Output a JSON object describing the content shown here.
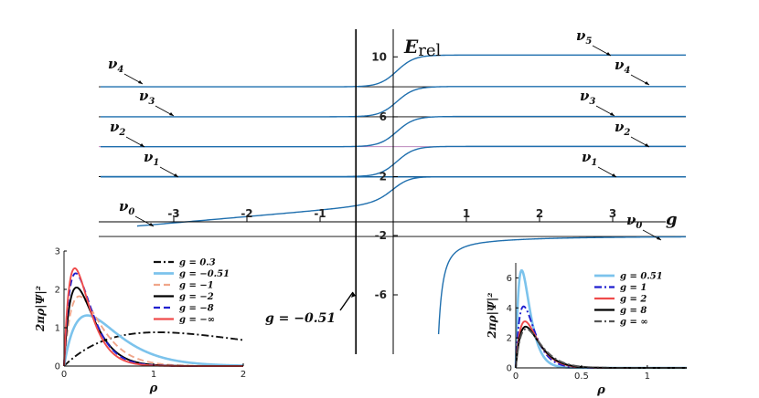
{
  "chart_data": [
    {
      "type": "line",
      "title": "",
      "ylabel_main": "E",
      "ylabel_sub": "rel",
      "xlabel": "g",
      "xlim": [
        -3.5,
        4.2
      ],
      "ylim": [
        -3.5,
        12
      ],
      "xticks": [
        -3,
        -2,
        -1,
        1,
        2,
        3
      ],
      "xtick_labels": [
        "-3",
        "-2",
        "-1",
        "1",
        "2",
        "3"
      ],
      "yticks": [
        -6,
        -2,
        2,
        6,
        10
      ],
      "ytick_labels": [
        "-6",
        "-2",
        "2",
        "6",
        "10"
      ],
      "thresholds": [
        -2,
        2,
        4,
        6,
        8
      ],
      "highlight_threshold": 4,
      "asymptotes_pos": [
        1.98,
        4.02,
        6.02,
        8.02,
        10.12
      ],
      "vertical_marker": {
        "g": -0.51,
        "label": "g = −0.51"
      },
      "level_labels": [
        {
          "base": "ν",
          "sub": "0",
          "side": "left",
          "g": -3.3,
          "E": -1.2
        },
        {
          "base": "ν",
          "sub": "1",
          "side": "left",
          "g": -3.0,
          "E": 2.0
        },
        {
          "base": "ν",
          "sub": "2",
          "side": "left",
          "g": -3.0,
          "E": 4.0
        },
        {
          "base": "ν",
          "sub": "3",
          "side": "left",
          "g": -2.8,
          "E": 6.0
        },
        {
          "base": "ν",
          "sub": "4",
          "side": "left",
          "g": -3.1,
          "E": 8.0
        },
        {
          "base": "ν",
          "sub": "0",
          "side": "right",
          "g": 3.9,
          "E": -2.6
        },
        {
          "base": "ν",
          "sub": "1",
          "side": "right",
          "g": 3.3,
          "E": 2.0
        },
        {
          "base": "ν",
          "sub": "2",
          "side": "right",
          "g": 3.6,
          "E": 4.0
        },
        {
          "base": "ν",
          "sub": "3",
          "side": "right",
          "g": 3.3,
          "E": 6.0
        },
        {
          "base": "ν",
          "sub": "4",
          "side": "right",
          "g": 3.6,
          "E": 8.0
        },
        {
          "base": "ν",
          "sub": "5",
          "side": "right",
          "g": 3.3,
          "E": 10.1
        }
      ]
    },
    {
      "type": "line",
      "title": "",
      "xlabel": "ρ",
      "ylabel": "2πρ|Ψ|²",
      "xlim": [
        0,
        2
      ],
      "ylim": [
        0,
        3
      ],
      "xtick_labels": [
        "0",
        "1",
        "2"
      ],
      "ytick_labels": [
        "0",
        "1",
        "2",
        "3"
      ],
      "legend_position": "top-right",
      "series": [
        {
          "name": "g = 0.3",
          "color": "#111111",
          "dash": "dashdot",
          "peak_rho": 1.05,
          "peak": 0.88
        },
        {
          "name": "g = −0.51",
          "color": "#7cc3ec",
          "dash": "solid",
          "peak_rho": 0.26,
          "peak": 1.32
        },
        {
          "name": "g = −1",
          "color": "#f0a68a",
          "dash": "dashed",
          "peak_rho": 0.17,
          "peak": 1.82
        },
        {
          "name": "g = −2",
          "color": "#000000",
          "dash": "solid",
          "peak_rho": 0.14,
          "peak": 2.05
        },
        {
          "name": "g = −8",
          "color": "#1f1fcf",
          "dash": "dashed",
          "peak_rho": 0.13,
          "peak": 2.42
        },
        {
          "name": "g = −∞",
          "color": "#ef4b4b",
          "dash": "solid",
          "peak_rho": 0.12,
          "peak": 2.55
        }
      ]
    },
    {
      "type": "line",
      "title": "",
      "xlabel": "ρ",
      "ylabel": "2πρ|Ψ|²",
      "xlim": [
        0,
        1.3
      ],
      "ylim": [
        0,
        7
      ],
      "xtick_labels": [
        "0",
        "0.5",
        "1"
      ],
      "ytick_labels": [
        "0",
        "2",
        "4",
        "6"
      ],
      "legend_position": "top-right",
      "series": [
        {
          "name": "g = 0.51",
          "color": "#7cc3ec",
          "dash": "solid",
          "peak_rho": 0.045,
          "peak": 6.5
        },
        {
          "name": "g = 1",
          "color": "#1f1fcf",
          "dash": "dashdot",
          "peak_rho": 0.06,
          "peak": 4.1
        },
        {
          "name": "g = 2",
          "color": "#ef4b4b",
          "dash": "solid",
          "peak_rho": 0.07,
          "peak": 3.1
        },
        {
          "name": "g = 8",
          "color": "#000000",
          "dash": "solid",
          "peak_rho": 0.075,
          "peak": 2.75
        },
        {
          "name": "g = ∞",
          "color": "#555555",
          "dash": "dashdot",
          "peak_rho": 0.08,
          "peak": 2.6
        }
      ]
    }
  ]
}
